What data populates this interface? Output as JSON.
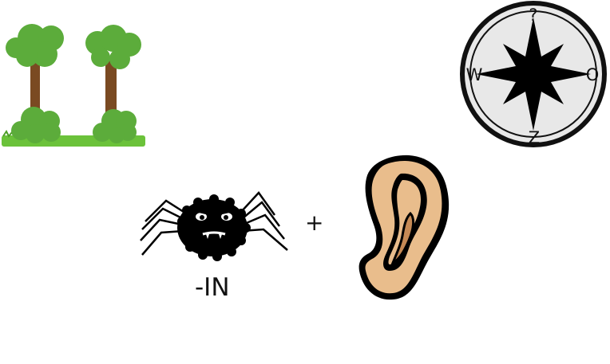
{
  "puzzle": {
    "plus_sign": "+",
    "suffix_text": "-IN",
    "compass": {
      "north": "?",
      "west": "W",
      "east": "O",
      "south": "Z"
    },
    "icons": [
      "trees-icon",
      "compass-icon",
      "spider-icon",
      "ear-icon"
    ],
    "colors": {
      "foliage": "#5cac3b",
      "trunk": "#7a4a22",
      "grass": "#6bc23a",
      "compass_face": "#e8e8e8",
      "compass_ring": "#111111",
      "ear_skin": "#e9bd8c",
      "ear_shadow": "#c68a55"
    }
  }
}
